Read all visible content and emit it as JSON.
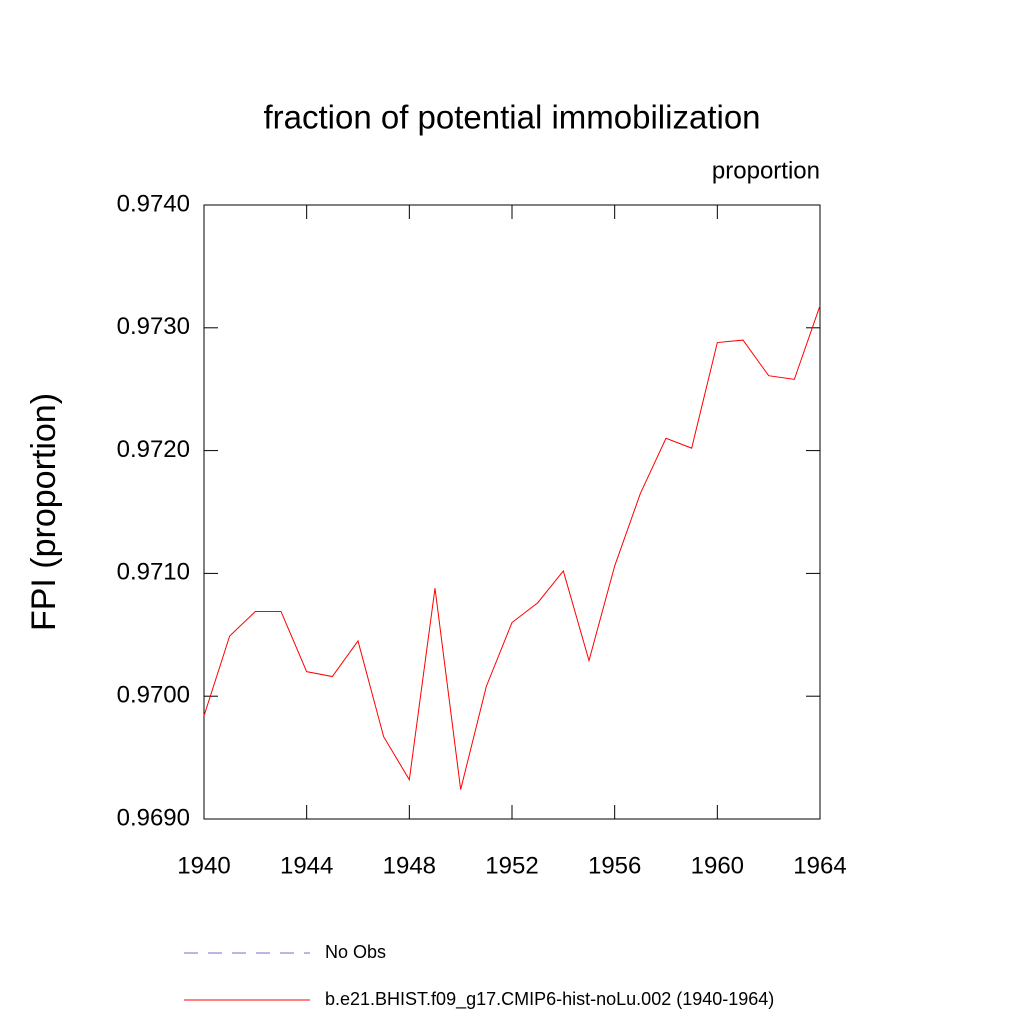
{
  "chart_data": {
    "type": "line",
    "title": "fraction of potential immobilization",
    "subtitle": "proportion",
    "y_label": "FPI  (proportion)",
    "x": [
      1940,
      1941,
      1942,
      1943,
      1944,
      1945,
      1946,
      1947,
      1948,
      1949,
      1950,
      1951,
      1952,
      1953,
      1954,
      1955,
      1956,
      1957,
      1958,
      1959,
      1960,
      1961,
      1962,
      1963,
      1964
    ],
    "series": [
      {
        "name": "No Obs",
        "color": "#7070d0",
        "dashed": true,
        "values": [
          null,
          null,
          null,
          null,
          null,
          null,
          null,
          null,
          null,
          null,
          null,
          null,
          null,
          null,
          null,
          null,
          null,
          null,
          null,
          null,
          null,
          null,
          null,
          null,
          null
        ]
      },
      {
        "name": "b.e21.BHIST.f09_g17.CMIP6-hist-noLu.002 (1940-1964)",
        "color": "#ff0000",
        "dashed": false,
        "values": [
          0.96984,
          0.97049,
          0.97069,
          0.97069,
          0.9702,
          0.97016,
          0.97045,
          0.96967,
          0.96932,
          0.97088,
          0.96924,
          0.97008,
          0.9706,
          0.97076,
          0.97102,
          0.97029,
          0.97106,
          0.97165,
          0.9721,
          0.97202,
          0.97288,
          0.9729,
          0.97261,
          0.97258,
          0.97318
        ]
      }
    ],
    "xlim": [
      1940,
      1964
    ],
    "xticks": [
      1940,
      1944,
      1948,
      1952,
      1956,
      1960,
      1964
    ],
    "ylim": [
      0.969,
      0.974
    ],
    "yticks": [
      {
        "value": 0.969,
        "label": "0.9690"
      },
      {
        "value": 0.97,
        "label": "0.9700"
      },
      {
        "value": 0.971,
        "label": "0.9710"
      },
      {
        "value": 0.972,
        "label": "0.9720"
      },
      {
        "value": 0.973,
        "label": "0.9730"
      },
      {
        "value": 0.974,
        "label": "0.9740"
      }
    ],
    "grid": false
  }
}
